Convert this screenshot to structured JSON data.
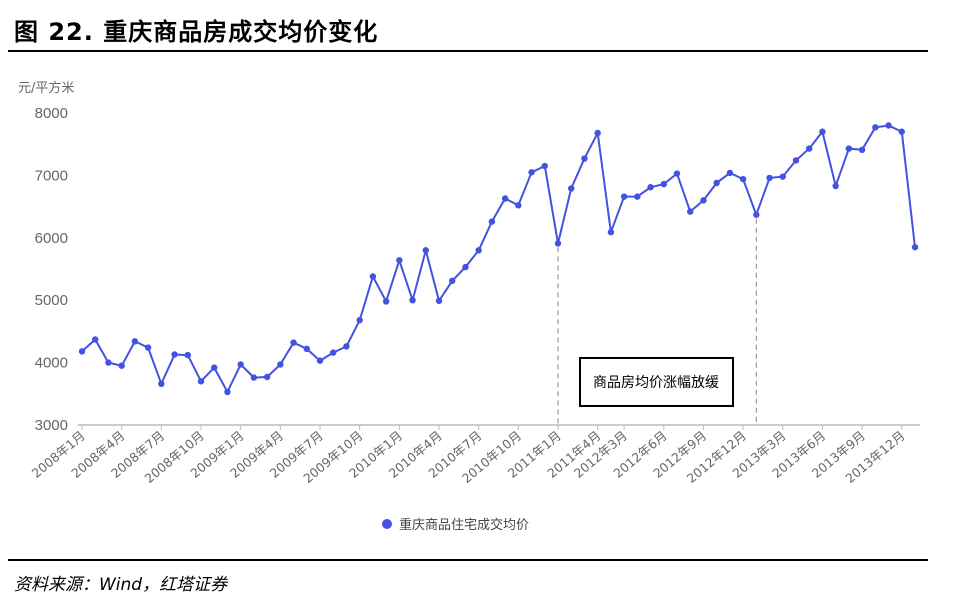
{
  "header": {
    "title": "图 22.  重庆商品房成交均价变化"
  },
  "footer": {
    "source": "资料来源：Wind，红塔证券"
  },
  "colors": {
    "series": "#4352e0",
    "axis": "#bbbbbb",
    "text": "#666666",
    "guide": "#999999"
  },
  "chart_data": {
    "type": "line",
    "ylabel": "元/平方米",
    "ylim": [
      3000,
      8000
    ],
    "yticks": [
      "3000",
      "4000",
      "5000",
      "6000",
      "7000",
      "8000"
    ],
    "legend": {
      "position": "bottom"
    },
    "grid": false,
    "x_tick_labels": [
      "2008年1月",
      "2008年4月",
      "2008年7月",
      "2008年10月",
      "2009年1月",
      "2009年4月",
      "2009年7月",
      "2009年10月",
      "2010年1月",
      "2010年4月",
      "2010年7月",
      "2010年10月",
      "2011年1月",
      "2011年4月",
      "2012年3月",
      "2012年6月",
      "2012年9月",
      "2012年12月",
      "2013年3月",
      "2013年6月",
      "2013年9月",
      "2013年12月"
    ],
    "series": [
      {
        "name": "重庆商品住宅成交均价",
        "values": [
          4180,
          4370,
          4000,
          3950,
          4340,
          4240,
          3660,
          4130,
          4120,
          3700,
          3920,
          3530,
          3970,
          3760,
          3770,
          3970,
          4320,
          4220,
          4030,
          4160,
          4260,
          4680,
          5380,
          4980,
          5640,
          5000,
          5800,
          4990,
          5310,
          5530,
          5800,
          6260,
          6630,
          6520,
          7050,
          7150,
          5910,
          6790,
          7270,
          7680,
          6090,
          6660,
          6660,
          6810,
          6860,
          7030,
          6420,
          6600,
          6880,
          7040,
          6940,
          6370,
          6960,
          6980,
          7240,
          7430,
          7700,
          6830,
          7430,
          7410,
          7770,
          7800,
          7700,
          5850
        ]
      }
    ],
    "annotations": [
      {
        "text": "商品房均价涨幅放缓"
      }
    ]
  }
}
